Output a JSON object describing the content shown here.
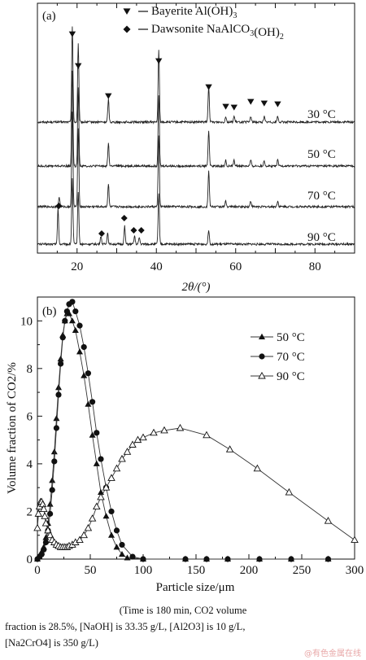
{
  "chart_data": [
    {
      "type": "line",
      "panel_label": "(a)",
      "xlabel": "2θ/(°)",
      "xlim": [
        10,
        90
      ],
      "x_ticks": [
        "20",
        "40",
        "60",
        "80"
      ],
      "legend": [
        {
          "marker": "triangle-down",
          "label": "Bayerite Al(OH)3"
        },
        {
          "marker": "diamond",
          "label": "Dawsonite NaAlCO3(OH)2"
        }
      ],
      "series": [
        {
          "name": "30 °C",
          "peaks_2theta": [
            18.8,
            20.3,
            27.9,
            40.6,
            53.2,
            57.5,
            59.6,
            63.8,
            67.2,
            70.6
          ],
          "peak_markers": "triangle-down"
        },
        {
          "name": "50 °C",
          "peaks_2theta": [
            18.8,
            20.3,
            27.9,
            40.6,
            53.2,
            57.5,
            59.6,
            63.8,
            67.2,
            70.6
          ]
        },
        {
          "name": "70 °C",
          "peaks_2theta": [
            15.5,
            18.8,
            20.3,
            27.9,
            40.6,
            53.2,
            57.5,
            63.8,
            70.6
          ]
        },
        {
          "name": "90 °C",
          "peaks_2theta": [
            15.2,
            18.8,
            20.3,
            26.0,
            27.7,
            32.0,
            34.5,
            35.7,
            40.6,
            53.2
          ],
          "peak_markers": "diamond",
          "diamond_positions": [
            15.4,
            26.2,
            31.9,
            34.3,
            36.2
          ]
        }
      ]
    },
    {
      "type": "line",
      "panel_label": "(b)",
      "xlabel": "Particle size/μm",
      "ylabel": "Volume fraction of CO2/%",
      "xlim": [
        0,
        300
      ],
      "ylim": [
        0,
        11
      ],
      "x_ticks": [
        "0",
        "50",
        "100",
        "150",
        "200",
        "250",
        "300"
      ],
      "y_ticks": [
        "0",
        "2",
        "4",
        "6",
        "8",
        "10"
      ],
      "legend_position": "top-right",
      "series": [
        {
          "name": "50 °C",
          "marker": "filled-triangle",
          "x": [
            0,
            2,
            4,
            6,
            8,
            10,
            12,
            14,
            16,
            18,
            20,
            22,
            24,
            26,
            28,
            30,
            33,
            36,
            40,
            44,
            48,
            52,
            56,
            60,
            65,
            70,
            75,
            80,
            85,
            100,
            140,
            160,
            180,
            210,
            240,
            275
          ],
          "y": [
            0,
            0.1,
            0.3,
            0.5,
            0.9,
            1.5,
            2.3,
            3.3,
            4.5,
            5.9,
            7.2,
            8.4,
            9.4,
            10.0,
            10.3,
            10.3,
            10.0,
            9.6,
            8.7,
            7.7,
            6.5,
            5.2,
            4.0,
            2.8,
            1.8,
            1.0,
            0.5,
            0.2,
            0.05,
            0,
            0,
            0,
            0,
            0,
            0,
            0
          ]
        },
        {
          "name": "70 °C",
          "marker": "filled-circle",
          "x": [
            0,
            2,
            4,
            6,
            8,
            10,
            12,
            14,
            16,
            18,
            20,
            22,
            24,
            26,
            28,
            30,
            33,
            36,
            40,
            44,
            48,
            52,
            56,
            60,
            65,
            70,
            75,
            80,
            90,
            100,
            140,
            160,
            180,
            210,
            240,
            275
          ],
          "y": [
            0,
            0.1,
            0.2,
            0.4,
            0.7,
            1.2,
            1.9,
            2.9,
            4.1,
            5.5,
            6.9,
            8.2,
            9.3,
            10.0,
            10.4,
            10.7,
            10.8,
            10.4,
            9.8,
            8.9,
            7.8,
            6.6,
            5.3,
            4.2,
            3.0,
            2.0,
            1.2,
            0.6,
            0.1,
            0,
            0,
            0,
            0,
            0,
            0,
            0
          ]
        },
        {
          "name": "90 °C",
          "marker": "open-triangle",
          "x": [
            0,
            1,
            2,
            3,
            4,
            5,
            6,
            7,
            8,
            10,
            12,
            14,
            16,
            18,
            20,
            22,
            24,
            26,
            28,
            30,
            33,
            36,
            40,
            44,
            48,
            52,
            56,
            60,
            65,
            70,
            75,
            80,
            85,
            90,
            95,
            100,
            110,
            120,
            135,
            160,
            182,
            208,
            238,
            275,
            300
          ],
          "y": [
            1.3,
            1.9,
            2.2,
            2.4,
            2.4,
            2.3,
            2.1,
            1.8,
            1.5,
            1.2,
            1.0,
            0.8,
            0.7,
            0.6,
            0.55,
            0.5,
            0.5,
            0.5,
            0.5,
            0.55,
            0.6,
            0.7,
            0.8,
            1.0,
            1.3,
            1.7,
            2.2,
            2.6,
            3.0,
            3.4,
            3.8,
            4.2,
            4.5,
            4.8,
            5.0,
            5.1,
            5.3,
            5.4,
            5.5,
            5.2,
            4.6,
            3.8,
            2.8,
            1.6,
            0.8
          ]
        }
      ]
    }
  ],
  "caption": {
    "line1": "(Time is 180 min, CO2 volume",
    "line2": "fraction is 28.5%, [NaOH] is 33.35 g/L, [Al2O3] is 10 g/L,",
    "line3": "[Na2CrO4] is 350 g/L)"
  },
  "watermark": "@有色金属在线"
}
